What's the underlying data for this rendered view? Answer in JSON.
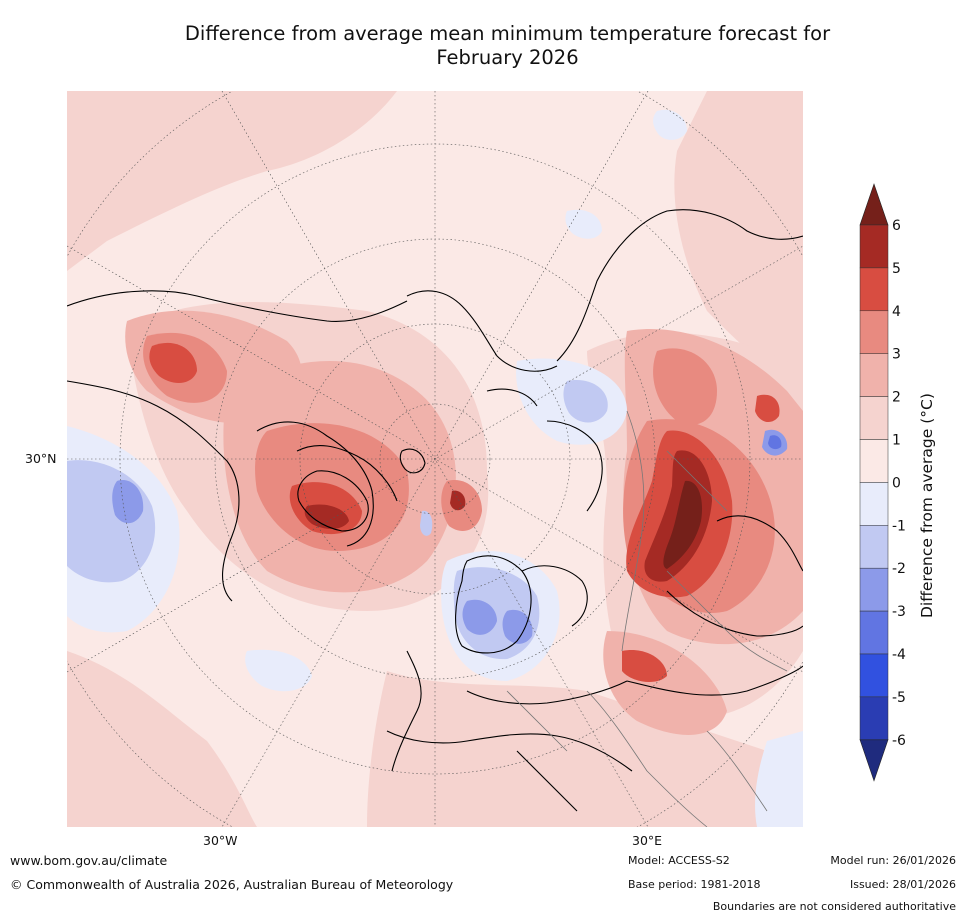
{
  "title_line1": "Difference from average mean minimum temperature forecast for",
  "title_line2": "February 2026",
  "map": {
    "lat_label": "30°N",
    "lon_labels": [
      "30°W",
      "30°E"
    ],
    "projection": "north-polar-stereographic"
  },
  "colorbar": {
    "label": "Difference from average (°C)",
    "ticks": [
      "6",
      "5",
      "4",
      "3",
      "2",
      "1",
      "0",
      "-1",
      "-2",
      "-3",
      "-4",
      "-5",
      "-6"
    ],
    "colors": [
      "#a52a24",
      "#d84d41",
      "#e88a80",
      "#f0b2ab",
      "#f5d3cf",
      "#fbe9e6",
      "#e8ecfb",
      "#c1c9f2",
      "#8c9ae9",
      "#6175e2",
      "#3151e0",
      "#2a3db3"
    ],
    "top_arrow_color": "#75201a",
    "bottom_arrow_color": "#1f2b7e"
  },
  "footer": {
    "url": "www.bom.gov.au/climate",
    "copyright": "© Commonwealth of Australia 2026, Australian Bureau of Meteorology",
    "model": "Model: ACCESS-S2",
    "base_period": "Base period: 1981-2018",
    "model_run": "Model run: 26/01/2026",
    "issued": "Issued: 28/01/2026",
    "disclaimer": "Boundaries are not considered authoritative"
  }
}
